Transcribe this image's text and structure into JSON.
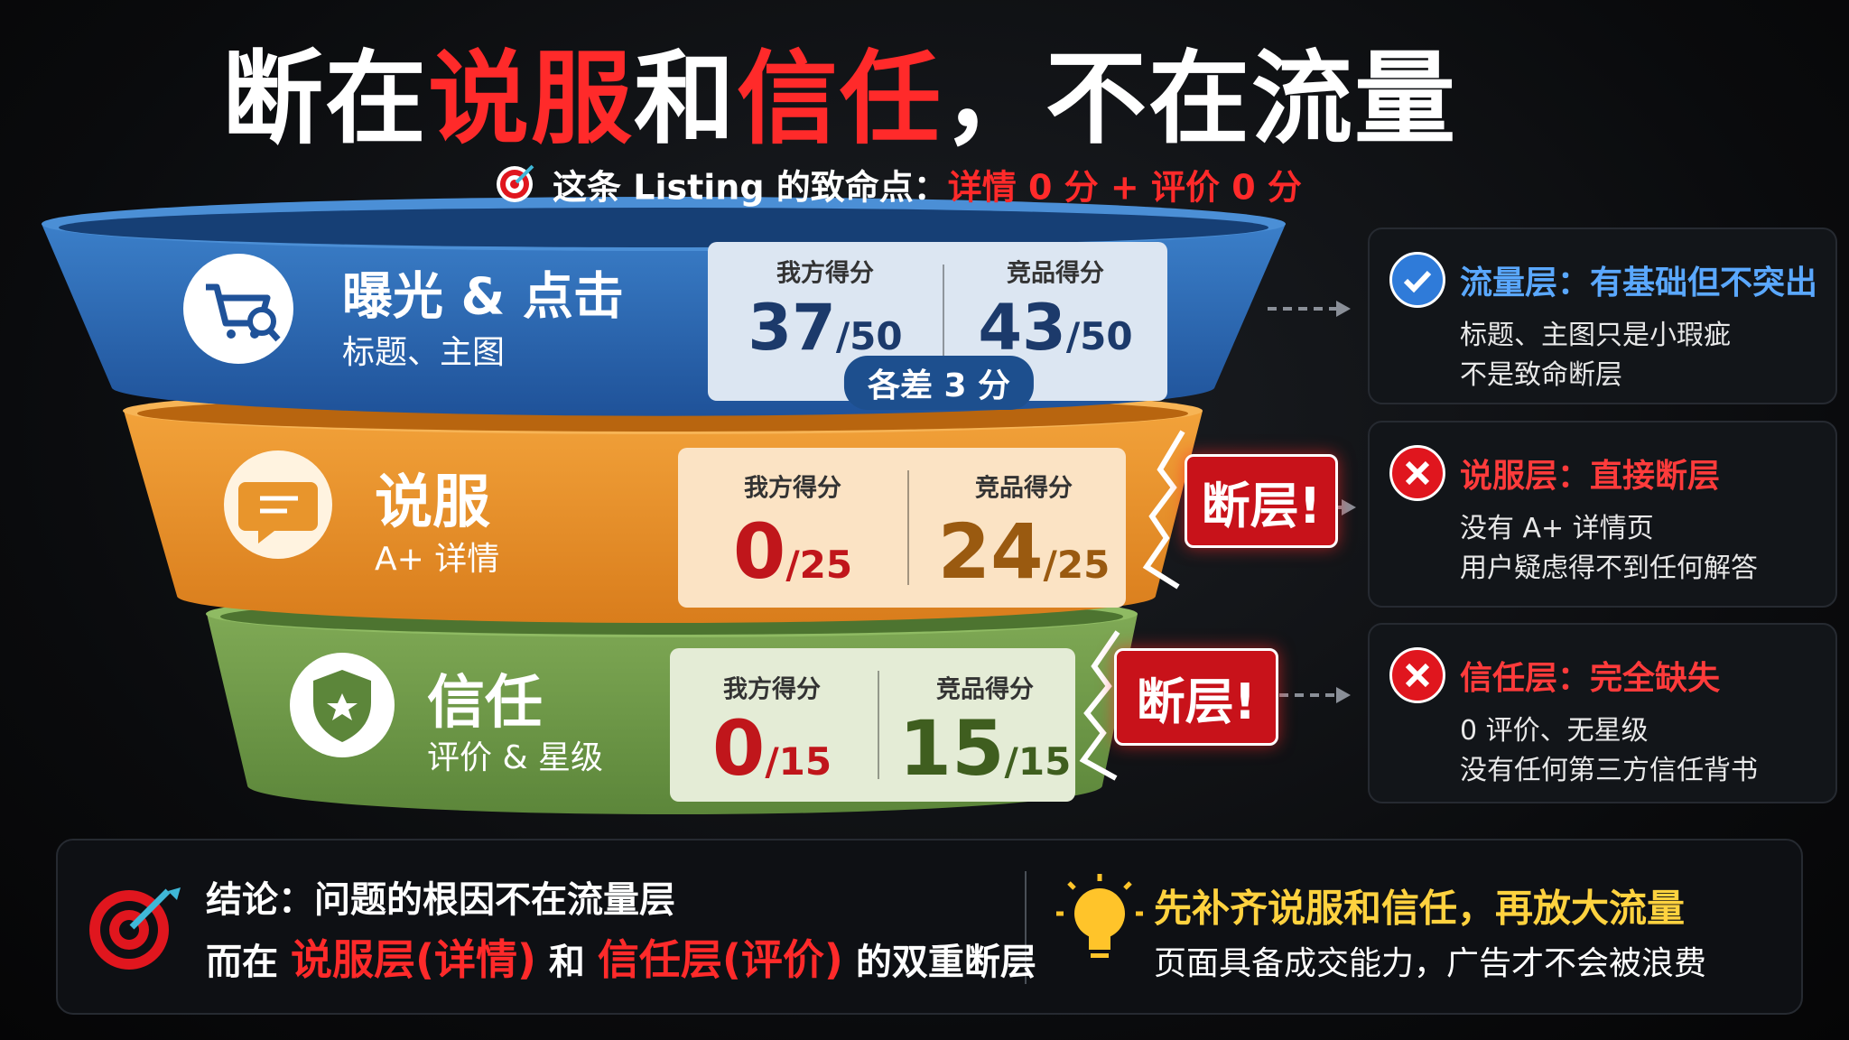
{
  "title": [
    "断在",
    "说服",
    "和",
    "信任",
    "，不在流量"
  ],
  "subtitle": {
    "lead": "这条 Listing 的致命点：",
    "highlight": "详情 0 分 + 评价 0 分"
  },
  "layers": [
    {
      "name": "曝光 & 点击",
      "sub": "标题、主图",
      "mine_label": "我方得分",
      "mine": 37,
      "mine_total": "/50",
      "comp_label": "竞品得分",
      "comp": 43,
      "comp_total": "/50",
      "badge": "各差 3 分"
    },
    {
      "name": "说服",
      "sub": "A+ 详情",
      "mine_label": "我方得分",
      "mine": 0,
      "mine_total": "/25",
      "comp_label": "竞品得分",
      "comp": 24,
      "comp_total": "/25",
      "break": "断层!"
    },
    {
      "name": "信任",
      "sub": "评价 & 星级",
      "mine_label": "我方得分",
      "mine": 0,
      "mine_total": "/15",
      "comp_label": "竞品得分",
      "comp": 15,
      "comp_total": "/15",
      "break": "断层!"
    }
  ],
  "cards": [
    {
      "title": "流量层：有基础但不突出",
      "lines": [
        "标题、主图只是小瑕疵",
        "不是致命断层"
      ]
    },
    {
      "title": "说服层：直接断层",
      "lines": [
        "没有 A+ 详情页",
        "用户疑虑得不到任何解答"
      ]
    },
    {
      "title": "信任层：完全缺失",
      "lines": [
        "0 评价、无星级",
        "没有任何第三方信任背书"
      ]
    }
  ],
  "conclusion": {
    "line1": "结论：问题的根因不在流量层",
    "line2": [
      "而在 ",
      "说服层(详情)",
      " 和 ",
      "信任层(评价)",
      " 的双重断层"
    ]
  },
  "action": {
    "title": "先补齐说服和信任，再放大流量",
    "text": "页面具备成交能力，广告才不会被浪费"
  }
}
